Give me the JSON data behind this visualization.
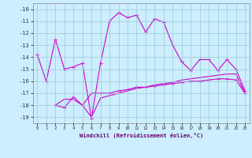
{
  "xlabel": "Windchill (Refroidissement éolien,°C)",
  "background_color": "#cceeff",
  "grid_color": "#99cccc",
  "line_color": "#cc00cc",
  "xlim": [
    -0.5,
    23.5
  ],
  "ylim": [
    -19.5,
    -9.5
  ],
  "yticks": [
    -19,
    -18,
    -17,
    -16,
    -15,
    -14,
    -13,
    -12,
    -11,
    -10
  ],
  "xticks": [
    0,
    1,
    2,
    3,
    4,
    5,
    6,
    7,
    8,
    9,
    10,
    11,
    12,
    13,
    14,
    15,
    16,
    17,
    18,
    19,
    20,
    21,
    22,
    23
  ],
  "series1_x": [
    0,
    1,
    2,
    3,
    4,
    5,
    6,
    7,
    8,
    9,
    10,
    11,
    12,
    13,
    14,
    15,
    16,
    17,
    18,
    19,
    20,
    21,
    22,
    23
  ],
  "series1_y": [
    -13.8,
    -16.0,
    -12.5,
    -15.0,
    -14.8,
    -14.5,
    -19.1,
    -14.5,
    -11.0,
    -10.3,
    -10.7,
    -10.5,
    -11.9,
    -10.8,
    -11.1,
    -13.0,
    -14.4,
    -15.1,
    -14.2,
    -14.2,
    -15.1,
    -14.2,
    -15.0,
    -16.8
  ],
  "series2_x": [
    2,
    3,
    4,
    5,
    6,
    7,
    8,
    9,
    10,
    11,
    12,
    13,
    14,
    15,
    16,
    17,
    18,
    19,
    20,
    21,
    22,
    23
  ],
  "series2_y": [
    -18.0,
    -18.2,
    -17.3,
    -18.0,
    -17.0,
    -17.0,
    -17.0,
    -16.8,
    -16.7,
    -16.5,
    -16.5,
    -16.4,
    -16.3,
    -16.2,
    -16.1,
    -16.0,
    -16.0,
    -15.9,
    -15.8,
    -15.8,
    -15.9,
    -17.0
  ],
  "series3_x": [
    2,
    3,
    4,
    5,
    6,
    7,
    8,
    9,
    10,
    11,
    12,
    13,
    14,
    15,
    16,
    17,
    18,
    19,
    20,
    21,
    22,
    23
  ],
  "series3_y": [
    -18.0,
    -17.5,
    -17.5,
    -18.0,
    -19.0,
    -17.4,
    -17.2,
    -17.0,
    -16.8,
    -16.6,
    -16.5,
    -16.3,
    -16.2,
    -16.1,
    -15.9,
    -15.8,
    -15.7,
    -15.6,
    -15.5,
    -15.4,
    -15.4,
    -17.0
  ]
}
